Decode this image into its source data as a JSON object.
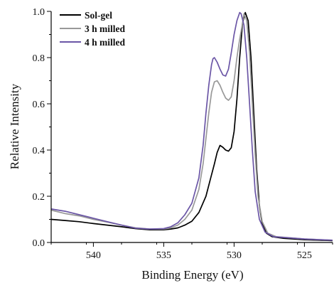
{
  "chart_data": {
    "type": "line",
    "title": "",
    "xlabel": "Binding Energy (eV)",
    "ylabel": "Relative Intensity",
    "xlim": [
      543,
      523
    ],
    "ylim": [
      0,
      1.0
    ],
    "x_reversed": true,
    "x_ticks": [
      540,
      535,
      530,
      525
    ],
    "x_tick_labels": [
      "540",
      "535",
      "530",
      "525"
    ],
    "y_ticks": [
      0.0,
      0.2,
      0.4,
      0.6,
      0.8,
      1.0
    ],
    "y_tick_labels": [
      "0.0",
      "0.2",
      "0.4",
      "0.6",
      "0.8",
      "1.0"
    ],
    "grid": false,
    "legend_position": "top-left",
    "series": [
      {
        "name": "Sol-gel",
        "color": "#000000",
        "points": [
          [
            543,
            0.1
          ],
          [
            542,
            0.095
          ],
          [
            541,
            0.09
          ],
          [
            540,
            0.082
          ],
          [
            539,
            0.075
          ],
          [
            538,
            0.068
          ],
          [
            537,
            0.06
          ],
          [
            536,
            0.055
          ],
          [
            535,
            0.055
          ],
          [
            534.5,
            0.058
          ],
          [
            534,
            0.063
          ],
          [
            533.5,
            0.075
          ],
          [
            533,
            0.092
          ],
          [
            532.5,
            0.13
          ],
          [
            532,
            0.2
          ],
          [
            531.7,
            0.27
          ],
          [
            531.4,
            0.34
          ],
          [
            531.2,
            0.39
          ],
          [
            531.0,
            0.42
          ],
          [
            530.8,
            0.412
          ],
          [
            530.6,
            0.4
          ],
          [
            530.4,
            0.395
          ],
          [
            530.2,
            0.41
          ],
          [
            530.0,
            0.48
          ],
          [
            529.8,
            0.62
          ],
          [
            529.6,
            0.8
          ],
          [
            529.4,
            0.95
          ],
          [
            529.2,
            0.995
          ],
          [
            529.0,
            0.96
          ],
          [
            528.8,
            0.8
          ],
          [
            528.6,
            0.56
          ],
          [
            528.4,
            0.32
          ],
          [
            528.2,
            0.16
          ],
          [
            528.0,
            0.08
          ],
          [
            527.7,
            0.04
          ],
          [
            527.3,
            0.025
          ],
          [
            526.5,
            0.018
          ],
          [
            525,
            0.012
          ],
          [
            523,
            0.008
          ]
        ]
      },
      {
        "name": "3 h milled",
        "color": "#999999",
        "points": [
          [
            543,
            0.14
          ],
          [
            542,
            0.125
          ],
          [
            541,
            0.115
          ],
          [
            540,
            0.1
          ],
          [
            539,
            0.088
          ],
          [
            538,
            0.075
          ],
          [
            537,
            0.063
          ],
          [
            536,
            0.058
          ],
          [
            535,
            0.058
          ],
          [
            534.5,
            0.063
          ],
          [
            534,
            0.075
          ],
          [
            533.5,
            0.1
          ],
          [
            533,
            0.14
          ],
          [
            532.5,
            0.23
          ],
          [
            532.2,
            0.34
          ],
          [
            532,
            0.45
          ],
          [
            531.8,
            0.56
          ],
          [
            531.6,
            0.65
          ],
          [
            531.4,
            0.695
          ],
          [
            531.2,
            0.7
          ],
          [
            531.0,
            0.68
          ],
          [
            530.8,
            0.65
          ],
          [
            530.6,
            0.625
          ],
          [
            530.4,
            0.615
          ],
          [
            530.2,
            0.63
          ],
          [
            530.0,
            0.7
          ],
          [
            529.8,
            0.8
          ],
          [
            529.6,
            0.88
          ],
          [
            529.4,
            0.95
          ],
          [
            529.3,
            0.99
          ],
          [
            529.1,
            0.96
          ],
          [
            528.9,
            0.82
          ],
          [
            528.7,
            0.6
          ],
          [
            528.5,
            0.38
          ],
          [
            528.3,
            0.2
          ],
          [
            528.0,
            0.09
          ],
          [
            527.6,
            0.04
          ],
          [
            527.0,
            0.025
          ],
          [
            525,
            0.015
          ],
          [
            523,
            0.01
          ]
        ]
      },
      {
        "name": "4 h milled",
        "color": "#6b56a6",
        "points": [
          [
            543,
            0.145
          ],
          [
            542,
            0.135
          ],
          [
            541,
            0.12
          ],
          [
            540,
            0.105
          ],
          [
            539,
            0.09
          ],
          [
            538,
            0.075
          ],
          [
            537,
            0.062
          ],
          [
            536,
            0.058
          ],
          [
            535,
            0.06
          ],
          [
            534.5,
            0.068
          ],
          [
            534,
            0.085
          ],
          [
            533.5,
            0.12
          ],
          [
            533,
            0.17
          ],
          [
            532.5,
            0.28
          ],
          [
            532.2,
            0.42
          ],
          [
            532,
            0.56
          ],
          [
            531.8,
            0.68
          ],
          [
            531.6,
            0.77
          ],
          [
            531.5,
            0.795
          ],
          [
            531.4,
            0.8
          ],
          [
            531.2,
            0.78
          ],
          [
            531.0,
            0.75
          ],
          [
            530.8,
            0.725
          ],
          [
            530.6,
            0.72
          ],
          [
            530.4,
            0.75
          ],
          [
            530.2,
            0.82
          ],
          [
            530.0,
            0.9
          ],
          [
            529.8,
            0.96
          ],
          [
            529.6,
            0.995
          ],
          [
            529.5,
            0.99
          ],
          [
            529.3,
            0.94
          ],
          [
            529.1,
            0.8
          ],
          [
            528.9,
            0.6
          ],
          [
            528.7,
            0.4
          ],
          [
            528.5,
            0.22
          ],
          [
            528.2,
            0.1
          ],
          [
            527.8,
            0.045
          ],
          [
            527.2,
            0.025
          ],
          [
            525,
            0.015
          ],
          [
            523,
            0.01
          ]
        ]
      }
    ]
  }
}
